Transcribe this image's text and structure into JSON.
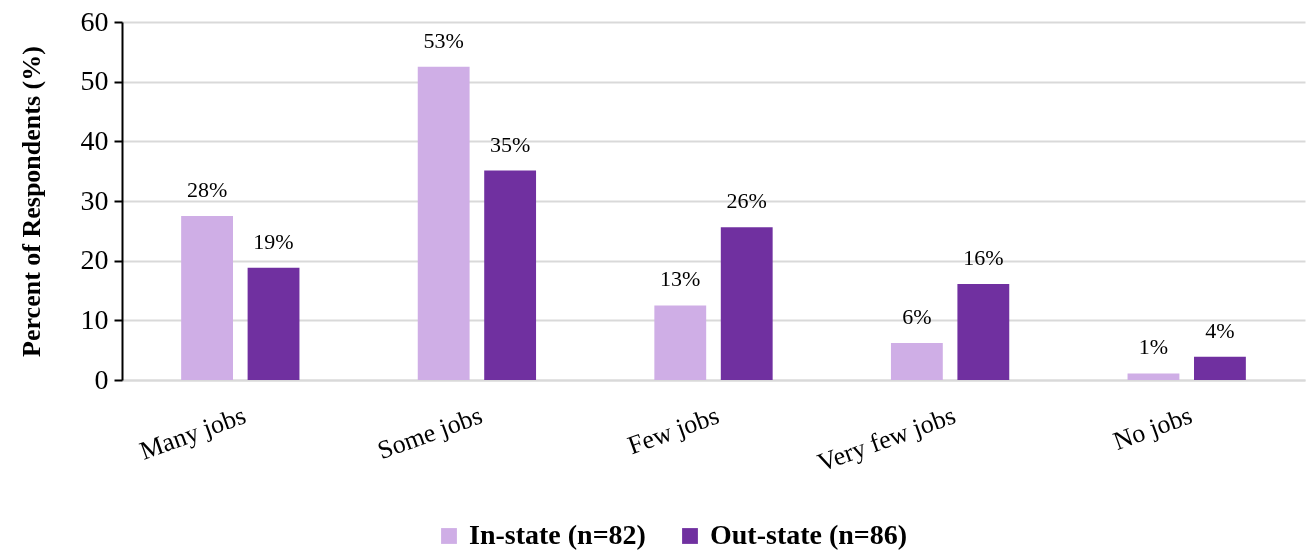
{
  "chart_data": {
    "type": "bar",
    "ylabel": "Percent of Respondents (%)",
    "categories": [
      "Many jobs",
      "Some jobs",
      "Few jobs",
      "Very few jobs",
      "No jobs"
    ],
    "series": [
      {
        "name": "In-state (n=82)",
        "color": "#cfaee6",
        "values": [
          27.5,
          52.5,
          12.5,
          6.2,
          1.1
        ],
        "value_labels": [
          "28%",
          "53%",
          "13%",
          "6%",
          "1%"
        ]
      },
      {
        "name": "Out-state (n=86)",
        "color": "#7030a0",
        "values": [
          18.8,
          35.1,
          25.6,
          16.1,
          3.9
        ],
        "value_labels": [
          "19%",
          "35%",
          "26%",
          "16%",
          "4%"
        ]
      }
    ],
    "ylim": [
      0,
      60
    ],
    "yticks": [
      0,
      10,
      20,
      30,
      40,
      50,
      60
    ],
    "grid": "y",
    "legend": "bottom"
  }
}
